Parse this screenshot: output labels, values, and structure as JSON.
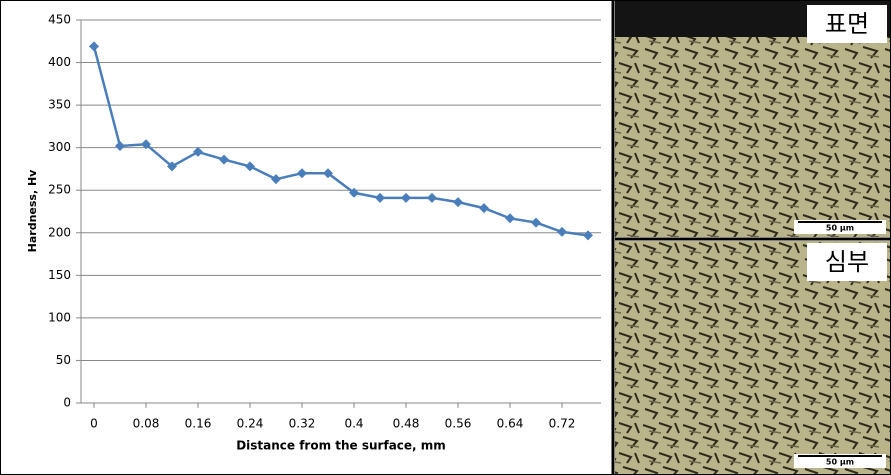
{
  "chart_data": {
    "type": "line",
    "xlabel": "Distance from the surface, mm",
    "ylabel": "Hardness, Hv",
    "x": [
      0,
      0.04,
      0.08,
      0.12,
      0.16,
      0.2,
      0.24,
      0.28,
      0.32,
      0.36,
      0.4,
      0.44,
      0.48,
      0.52,
      0.56,
      0.6,
      0.64,
      0.68,
      0.72,
      0.76
    ],
    "series": [
      {
        "color": "#4a7ebb",
        "values": [
          419,
          302,
          304,
          278,
          295,
          286,
          278,
          263,
          270,
          270,
          247,
          241,
          241,
          241,
          236,
          229,
          217,
          212,
          201,
          197
        ]
      }
    ],
    "xlim": [
      -0.02,
      0.78
    ],
    "xticks": [
      0,
      0.08,
      0.16,
      0.24,
      0.32,
      0.4,
      0.48,
      0.56,
      0.64,
      0.72
    ],
    "ylim": [
      0,
      450
    ],
    "yticks": [
      0,
      50,
      100,
      150,
      200,
      250,
      300,
      350,
      400,
      450
    ],
    "grid": true
  },
  "micrographs": [
    {
      "label": "표면",
      "scale": "50 μm"
    },
    {
      "label": "심부",
      "scale": "50 μm"
    }
  ]
}
